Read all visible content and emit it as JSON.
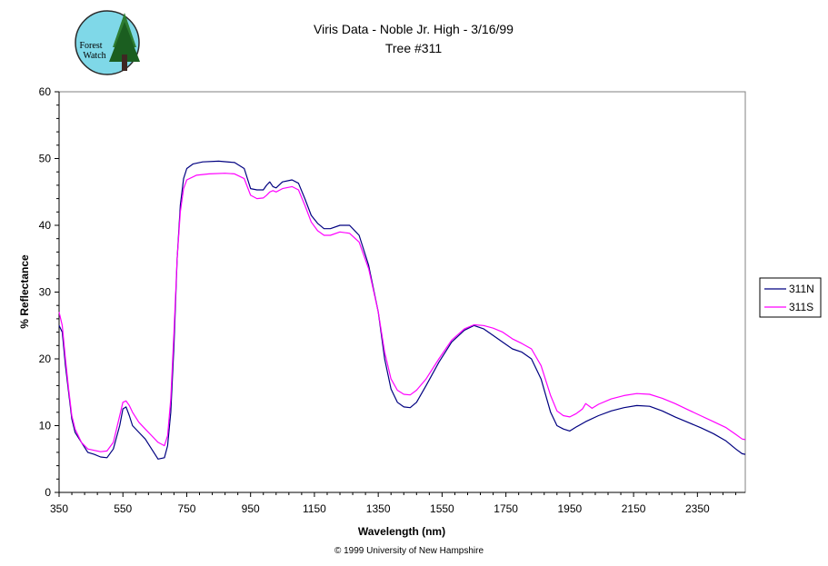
{
  "logo": {
    "line1": "Forest",
    "line2": "Watch"
  },
  "footer": "© 1999 University of New Hampshire",
  "chart_data": {
    "type": "line",
    "title": "Viris Data - Noble Jr. High - 3/16/99",
    "subtitle": "Tree #311",
    "xlabel": "Wavelength (nm)",
    "ylabel": "% Reflectance",
    "xlim": [
      350,
      2500
    ],
    "ylim": [
      0,
      60
    ],
    "xticks": [
      350,
      550,
      750,
      950,
      1150,
      1350,
      1550,
      1750,
      1950,
      2150,
      2350
    ],
    "yticks": [
      0,
      10,
      20,
      30,
      40,
      50,
      60
    ],
    "grid": false,
    "legend": "right",
    "series": [
      {
        "name": "311N",
        "color": "#000080",
        "points": [
          [
            350,
            25
          ],
          [
            360,
            24
          ],
          [
            370,
            19
          ],
          [
            380,
            15
          ],
          [
            390,
            11
          ],
          [
            400,
            9
          ],
          [
            420,
            7.5
          ],
          [
            440,
            6
          ],
          [
            460,
            5.7
          ],
          [
            480,
            5.3
          ],
          [
            500,
            5.2
          ],
          [
            520,
            6.5
          ],
          [
            540,
            10
          ],
          [
            550,
            12.5
          ],
          [
            560,
            12.8
          ],
          [
            570,
            11.5
          ],
          [
            580,
            10
          ],
          [
            600,
            9
          ],
          [
            620,
            8
          ],
          [
            640,
            6.5
          ],
          [
            660,
            5
          ],
          [
            680,
            5.2
          ],
          [
            690,
            7
          ],
          [
            700,
            12
          ],
          [
            710,
            22
          ],
          [
            720,
            35
          ],
          [
            730,
            43
          ],
          [
            740,
            47
          ],
          [
            750,
            48.5
          ],
          [
            770,
            49.2
          ],
          [
            800,
            49.5
          ],
          [
            850,
            49.6
          ],
          [
            900,
            49.4
          ],
          [
            930,
            48.5
          ],
          [
            950,
            45.5
          ],
          [
            970,
            45.3
          ],
          [
            990,
            45.3
          ],
          [
            1000,
            46
          ],
          [
            1010,
            46.5
          ],
          [
            1020,
            45.8
          ],
          [
            1030,
            45.6
          ],
          [
            1050,
            46.5
          ],
          [
            1080,
            46.8
          ],
          [
            1100,
            46.3
          ],
          [
            1120,
            44
          ],
          [
            1140,
            41.5
          ],
          [
            1160,
            40.3
          ],
          [
            1180,
            39.5
          ],
          [
            1200,
            39.5
          ],
          [
            1230,
            40
          ],
          [
            1260,
            40
          ],
          [
            1290,
            38.5
          ],
          [
            1320,
            34
          ],
          [
            1350,
            27
          ],
          [
            1370,
            20
          ],
          [
            1390,
            15.5
          ],
          [
            1410,
            13.5
          ],
          [
            1430,
            12.8
          ],
          [
            1450,
            12.7
          ],
          [
            1470,
            13.5
          ],
          [
            1500,
            16
          ],
          [
            1540,
            19.5
          ],
          [
            1580,
            22.5
          ],
          [
            1620,
            24.3
          ],
          [
            1650,
            25
          ],
          [
            1680,
            24.5
          ],
          [
            1710,
            23.5
          ],
          [
            1740,
            22.5
          ],
          [
            1770,
            21.5
          ],
          [
            1800,
            21
          ],
          [
            1830,
            20
          ],
          [
            1860,
            17
          ],
          [
            1890,
            12
          ],
          [
            1910,
            10
          ],
          [
            1930,
            9.5
          ],
          [
            1950,
            9.2
          ],
          [
            1970,
            9.8
          ],
          [
            2000,
            10.6
          ],
          [
            2040,
            11.5
          ],
          [
            2080,
            12.2
          ],
          [
            2120,
            12.7
          ],
          [
            2160,
            13
          ],
          [
            2200,
            12.9
          ],
          [
            2240,
            12.2
          ],
          [
            2280,
            11.3
          ],
          [
            2320,
            10.5
          ],
          [
            2360,
            9.7
          ],
          [
            2400,
            8.8
          ],
          [
            2440,
            7.7
          ],
          [
            2470,
            6.5
          ],
          [
            2490,
            5.8
          ],
          [
            2500,
            5.7
          ]
        ]
      },
      {
        "name": "311S",
        "color": "#ff00ff",
        "points": [
          [
            350,
            27
          ],
          [
            360,
            25
          ],
          [
            370,
            20
          ],
          [
            380,
            15.5
          ],
          [
            390,
            11.5
          ],
          [
            400,
            9.5
          ],
          [
            420,
            7.5
          ],
          [
            440,
            6.5
          ],
          [
            460,
            6.3
          ],
          [
            480,
            6.1
          ],
          [
            500,
            6.2
          ],
          [
            520,
            7.5
          ],
          [
            540,
            11.5
          ],
          [
            550,
            13.5
          ],
          [
            560,
            13.7
          ],
          [
            570,
            13
          ],
          [
            580,
            12
          ],
          [
            600,
            10.5
          ],
          [
            620,
            9.5
          ],
          [
            640,
            8.5
          ],
          [
            660,
            7.5
          ],
          [
            680,
            7
          ],
          [
            690,
            8.5
          ],
          [
            700,
            14
          ],
          [
            710,
            24
          ],
          [
            720,
            35
          ],
          [
            730,
            42
          ],
          [
            740,
            45.5
          ],
          [
            750,
            46.8
          ],
          [
            780,
            47.5
          ],
          [
            820,
            47.7
          ],
          [
            870,
            47.8
          ],
          [
            900,
            47.7
          ],
          [
            930,
            47
          ],
          [
            950,
            44.5
          ],
          [
            970,
            44
          ],
          [
            990,
            44.1
          ],
          [
            1000,
            44.5
          ],
          [
            1010,
            45
          ],
          [
            1020,
            45.2
          ],
          [
            1030,
            45
          ],
          [
            1050,
            45.5
          ],
          [
            1080,
            45.8
          ],
          [
            1100,
            45.3
          ],
          [
            1120,
            43
          ],
          [
            1140,
            40.5
          ],
          [
            1160,
            39.2
          ],
          [
            1180,
            38.5
          ],
          [
            1200,
            38.5
          ],
          [
            1230,
            39
          ],
          [
            1260,
            38.8
          ],
          [
            1290,
            37.5
          ],
          [
            1320,
            33.5
          ],
          [
            1350,
            27
          ],
          [
            1370,
            21
          ],
          [
            1390,
            17
          ],
          [
            1410,
            15.3
          ],
          [
            1430,
            14.7
          ],
          [
            1450,
            14.6
          ],
          [
            1470,
            15.3
          ],
          [
            1500,
            17
          ],
          [
            1540,
            20
          ],
          [
            1580,
            22.8
          ],
          [
            1620,
            24.5
          ],
          [
            1650,
            25.1
          ],
          [
            1680,
            25
          ],
          [
            1710,
            24.6
          ],
          [
            1740,
            24
          ],
          [
            1770,
            23
          ],
          [
            1800,
            22.3
          ],
          [
            1830,
            21.5
          ],
          [
            1860,
            19
          ],
          [
            1890,
            14.5
          ],
          [
            1910,
            12.2
          ],
          [
            1930,
            11.5
          ],
          [
            1950,
            11.3
          ],
          [
            1970,
            11.8
          ],
          [
            1990,
            12.5
          ],
          [
            2000,
            13.3
          ],
          [
            2020,
            12.6
          ],
          [
            2040,
            13.2
          ],
          [
            2080,
            14
          ],
          [
            2120,
            14.5
          ],
          [
            2160,
            14.8
          ],
          [
            2200,
            14.7
          ],
          [
            2240,
            14.1
          ],
          [
            2280,
            13.3
          ],
          [
            2320,
            12.4
          ],
          [
            2360,
            11.5
          ],
          [
            2400,
            10.6
          ],
          [
            2440,
            9.7
          ],
          [
            2470,
            8.7
          ],
          [
            2490,
            8
          ],
          [
            2500,
            7.9
          ]
        ]
      }
    ]
  }
}
